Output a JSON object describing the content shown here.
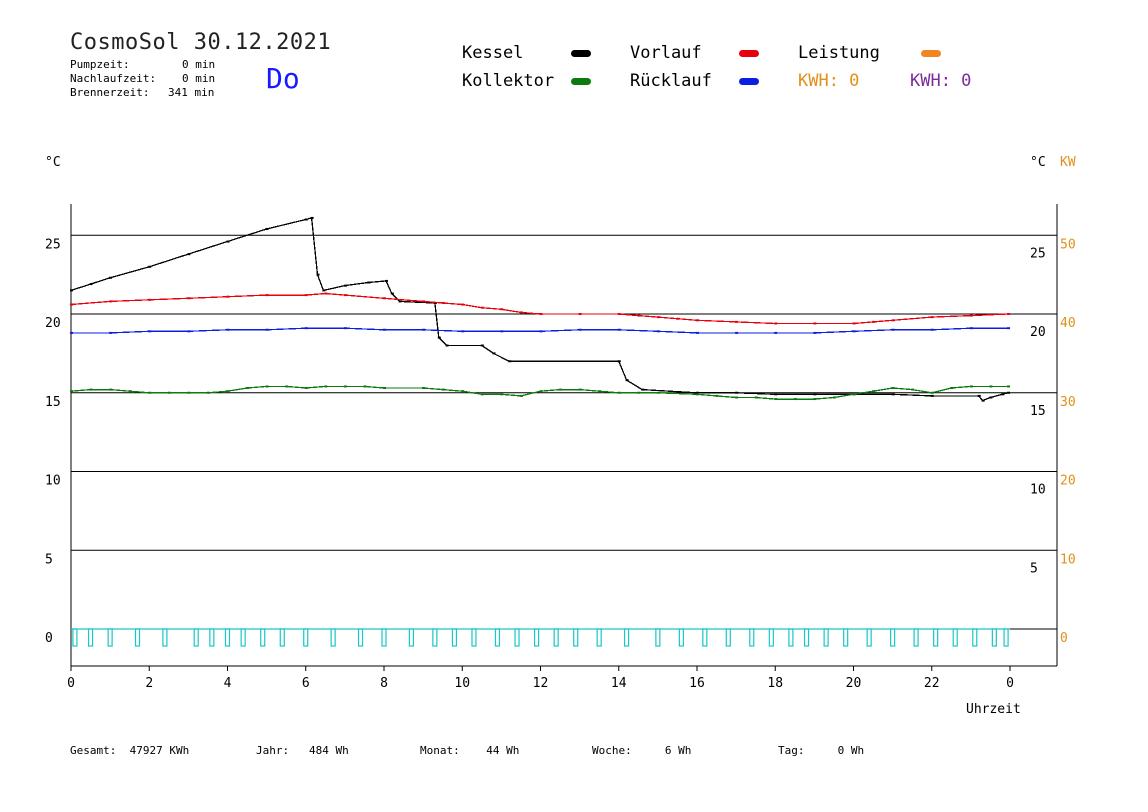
{
  "header": {
    "title": "CosmoSol 30.12.2021",
    "day": "Do",
    "stats": [
      {
        "label": "Pumpzeit:",
        "value": "0 min"
      },
      {
        "label": "Nachlaufzeit:",
        "value": "0 min"
      },
      {
        "label": "Brennerzeit:",
        "value": "341 min"
      }
    ]
  },
  "legend": {
    "items": [
      {
        "label": "Kessel",
        "color": "#000000"
      },
      {
        "label": "Vorlauf",
        "color": "#e8000b"
      },
      {
        "label": "Leistung",
        "color": "#f28522"
      },
      {
        "label": "Kollektor",
        "color": "#0c7a0c"
      },
      {
        "label": "Rücklauf",
        "color": "#0a1fe0"
      }
    ],
    "kwh_orange": "KWH: 0",
    "kwh_purple": "KWH: 0",
    "kwh_orange_color": "#e0901a",
    "kwh_purple_color": "#7b2b9b"
  },
  "footer": {
    "gesamt": "Gesamt:  47927 KWh",
    "jahr": "Jahr:   484 Wh",
    "monat": "Monat:    44 Wh",
    "woche": "Woche:     6 Wh",
    "tag": "Tag:     0 Wh"
  },
  "chart_data": {
    "type": "line",
    "xlabel": "Uhrzeit",
    "ylabel_left": "°C",
    "ylabel_right_c": "°C",
    "ylabel_right_kw": "KW",
    "xlim": [
      0,
      24
    ],
    "ylim": [
      -3,
      27
    ],
    "x_ticks": [
      "0",
      "2",
      "4",
      "6",
      "8",
      "10",
      "12",
      "14",
      "16",
      "18",
      "20",
      "22",
      "0"
    ],
    "y_ticks_left": [
      "0",
      "5",
      "10",
      "15",
      "20",
      "25"
    ],
    "y_ticks_right_c": [
      "5",
      "10",
      "15",
      "20",
      "25"
    ],
    "y_ticks_right_kw": [
      "0",
      "10",
      "20",
      "30",
      "40",
      "50"
    ],
    "grid": true,
    "series": [
      {
        "name": "Kessel",
        "color": "#000000",
        "points": [
          [
            0,
            21.5
          ],
          [
            0.5,
            21.9
          ],
          [
            1,
            22.3
          ],
          [
            2,
            23.0
          ],
          [
            3,
            23.8
          ],
          [
            4,
            24.6
          ],
          [
            5,
            25.4
          ],
          [
            6,
            26.0
          ],
          [
            6.15,
            26.1
          ],
          [
            6.3,
            22.5
          ],
          [
            6.45,
            21.5
          ],
          [
            7,
            21.8
          ],
          [
            7.6,
            22.0
          ],
          [
            8.05,
            22.1
          ],
          [
            8.2,
            21.3
          ],
          [
            8.4,
            20.8
          ],
          [
            9.3,
            20.7
          ],
          [
            9.4,
            18.5
          ],
          [
            9.6,
            18.0
          ],
          [
            10.5,
            18.0
          ],
          [
            10.8,
            17.5
          ],
          [
            11.2,
            17.0
          ],
          [
            14.0,
            17.0
          ],
          [
            14.2,
            15.8
          ],
          [
            14.6,
            15.2
          ],
          [
            16,
            15.0
          ],
          [
            17,
            15.0
          ],
          [
            18,
            14.9
          ],
          [
            19,
            14.9
          ],
          [
            20,
            14.9
          ],
          [
            21,
            14.9
          ],
          [
            22,
            14.8
          ],
          [
            23.2,
            14.8
          ],
          [
            23.3,
            14.5
          ],
          [
            23.5,
            14.7
          ],
          [
            23.8,
            14.9
          ],
          [
            23.95,
            15.0
          ]
        ]
      },
      {
        "name": "Vorlauf",
        "color": "#e8000b",
        "points": [
          [
            0,
            20.6
          ],
          [
            1,
            20.8
          ],
          [
            2,
            20.9
          ],
          [
            3,
            21.0
          ],
          [
            4,
            21.1
          ],
          [
            5,
            21.2
          ],
          [
            6,
            21.2
          ],
          [
            6.5,
            21.3
          ],
          [
            7,
            21.2
          ],
          [
            8,
            21.0
          ],
          [
            9,
            20.8
          ],
          [
            9.5,
            20.7
          ],
          [
            10,
            20.6
          ],
          [
            10.5,
            20.4
          ],
          [
            11,
            20.3
          ],
          [
            11.5,
            20.1
          ],
          [
            12,
            20.0
          ],
          [
            13,
            20.0
          ],
          [
            14,
            20.0
          ],
          [
            14.5,
            19.9
          ],
          [
            15,
            19.8
          ],
          [
            15.5,
            19.7
          ],
          [
            16,
            19.6
          ],
          [
            17,
            19.5
          ],
          [
            18,
            19.4
          ],
          [
            19,
            19.4
          ],
          [
            20,
            19.4
          ],
          [
            20.5,
            19.5
          ],
          [
            21,
            19.6
          ],
          [
            22,
            19.8
          ],
          [
            23,
            19.9
          ],
          [
            23.95,
            20.0
          ]
        ]
      },
      {
        "name": "Rücklauf",
        "color": "#0a1fe0",
        "points": [
          [
            0,
            18.8
          ],
          [
            1,
            18.8
          ],
          [
            2,
            18.9
          ],
          [
            3,
            18.9
          ],
          [
            4,
            19.0
          ],
          [
            5,
            19.0
          ],
          [
            6,
            19.1
          ],
          [
            7,
            19.1
          ],
          [
            8,
            19.0
          ],
          [
            9,
            19.0
          ],
          [
            10,
            18.9
          ],
          [
            11,
            18.9
          ],
          [
            12,
            18.9
          ],
          [
            13,
            19.0
          ],
          [
            14,
            19.0
          ],
          [
            15,
            18.9
          ],
          [
            16,
            18.8
          ],
          [
            17,
            18.8
          ],
          [
            18,
            18.8
          ],
          [
            19,
            18.8
          ],
          [
            20,
            18.9
          ],
          [
            21,
            19.0
          ],
          [
            22,
            19.0
          ],
          [
            23,
            19.1
          ],
          [
            23.95,
            19.1
          ]
        ]
      },
      {
        "name": "Kollektor",
        "color": "#0c7a0c",
        "points": [
          [
            0,
            15.1
          ],
          [
            0.5,
            15.2
          ],
          [
            1,
            15.2
          ],
          [
            1.5,
            15.1
          ],
          [
            2,
            15.0
          ],
          [
            2.5,
            15.0
          ],
          [
            3,
            15.0
          ],
          [
            3.5,
            15.0
          ],
          [
            4,
            15.1
          ],
          [
            4.5,
            15.3
          ],
          [
            5,
            15.4
          ],
          [
            5.5,
            15.4
          ],
          [
            6,
            15.3
          ],
          [
            6.5,
            15.4
          ],
          [
            7,
            15.4
          ],
          [
            7.5,
            15.4
          ],
          [
            8,
            15.3
          ],
          [
            9,
            15.3
          ],
          [
            9.5,
            15.2
          ],
          [
            10,
            15.1
          ],
          [
            10.5,
            14.9
          ],
          [
            11,
            14.9
          ],
          [
            11.5,
            14.8
          ],
          [
            12,
            15.1
          ],
          [
            12.5,
            15.2
          ],
          [
            13,
            15.2
          ],
          [
            13.5,
            15.1
          ],
          [
            14,
            15.0
          ],
          [
            14.5,
            15.0
          ],
          [
            15,
            15.0
          ],
          [
            16,
            14.9
          ],
          [
            16.5,
            14.8
          ],
          [
            17,
            14.7
          ],
          [
            17.5,
            14.7
          ],
          [
            18,
            14.6
          ],
          [
            18.5,
            14.6
          ],
          [
            19,
            14.6
          ],
          [
            19.5,
            14.7
          ],
          [
            20,
            14.9
          ],
          [
            20.5,
            15.1
          ],
          [
            21,
            15.3
          ],
          [
            21.5,
            15.2
          ],
          [
            22,
            15.0
          ],
          [
            22.5,
            15.3
          ],
          [
            23,
            15.4
          ],
          [
            23.5,
            15.4
          ],
          [
            23.95,
            15.4
          ]
        ]
      },
      {
        "name": "Leistung-cyan",
        "color": "#1ac6c6",
        "pulses": [
          0.1,
          0.5,
          1.0,
          1.7,
          2.4,
          3.2,
          3.6,
          4.0,
          4.4,
          4.9,
          5.4,
          6.0,
          6.7,
          7.4,
          8.0,
          8.7,
          9.3,
          9.8,
          10.3,
          10.9,
          11.4,
          11.9,
          12.4,
          12.9,
          13.5,
          14.2,
          15.0,
          15.6,
          16.2,
          16.8,
          17.4,
          17.9,
          18.4,
          18.8,
          19.3,
          19.8,
          20.4,
          21.0,
          21.6,
          22.1,
          22.6,
          23.1,
          23.6,
          23.9
        ]
      }
    ]
  }
}
